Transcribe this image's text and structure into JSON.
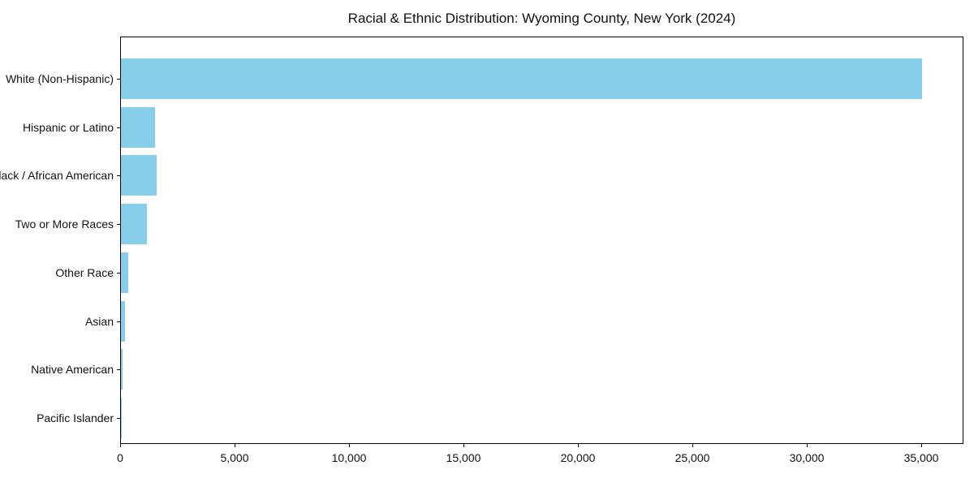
{
  "chart_data": {
    "type": "bar",
    "orientation": "horizontal",
    "title": "Racial & Ethnic Distribution: Wyoming County, New York (2024)",
    "categories": [
      "White (Non-Hispanic)",
      "Hispanic or Latino",
      "Black / African American",
      "Two or More Races",
      "Other Race",
      "Asian",
      "Native American",
      "Pacific Islander"
    ],
    "values": [
      35000,
      1500,
      1550,
      1130,
      310,
      170,
      60,
      15
    ],
    "xlabel": "",
    "ylabel": "",
    "xlim": [
      0,
      36850
    ],
    "x_ticks": [
      0,
      5000,
      10000,
      15000,
      20000,
      25000,
      30000,
      35000
    ],
    "x_tick_labels": [
      "0",
      "5,000",
      "10,000",
      "15,000",
      "20,000",
      "25,000",
      "30,000",
      "35,000"
    ],
    "bar_color": "#87CEEB",
    "axis_color": "#000000",
    "background_color": "#ffffff",
    "grid": false,
    "legend": "none"
  }
}
